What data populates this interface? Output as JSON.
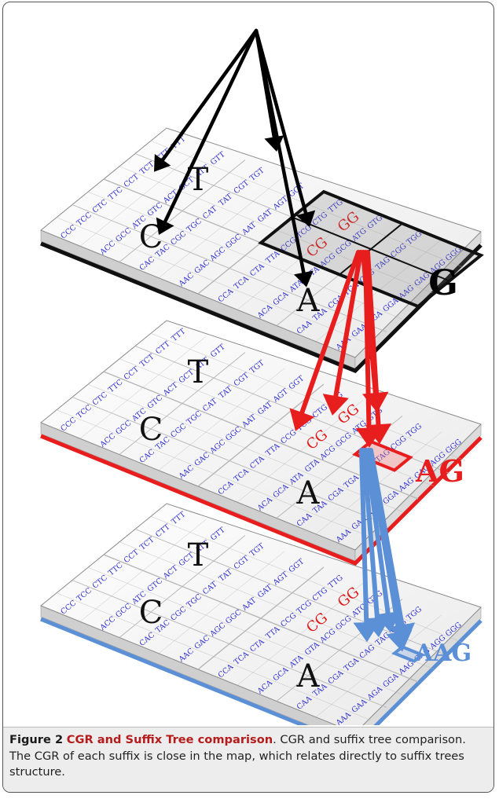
{
  "figure": {
    "plate_labels": [
      "G",
      "AG",
      "AAG"
    ],
    "quadrant_letters": [
      "C",
      "T",
      "A",
      "G"
    ],
    "plate_colors": {
      "top": "#111111",
      "middle": "#e81e1e",
      "bottom": "#5b8fd6"
    },
    "arrow_colors": {
      "top": "#000000",
      "middle": "#e81e1e",
      "bottom": "#5b8fd6"
    },
    "highlight_labels": [
      "CG",
      "GG"
    ],
    "text_colors": {
      "codon": "#2a2acf",
      "highlight": "#e01818"
    },
    "codon_rows": [
      [
        "CCC",
        "TCC",
        "CTC",
        "TTC",
        "CCT",
        "TCT",
        "CTT",
        "TTT"
      ],
      [
        "ACC",
        "GCC",
        "ATC",
        "GTC",
        "ACT",
        "GCT",
        "ATT",
        "GTT"
      ],
      [
        "CAC",
        "TAC",
        "CGC",
        "TGC",
        "CAT",
        "TAT",
        "CGT",
        "TGT"
      ],
      [
        "AAC",
        "GAC",
        "AGC",
        "GGC",
        "AAT",
        "GAT",
        "AGT",
        "GGT"
      ],
      [
        "CCA",
        "TCA",
        "CTA",
        "TTA",
        "CCG",
        "TCG",
        "CTG",
        "TTG"
      ],
      [
        "ACA",
        "GCA",
        "ATA",
        "GTA",
        "ACG",
        "GCG",
        "ATG",
        "GTG"
      ],
      [
        "CAA",
        "TAA",
        "CGA",
        "TGA",
        "CAG",
        "TAG",
        "CGG",
        "TGG"
      ],
      [
        "AAA",
        "GAA",
        "AGA",
        "GGA",
        "AAG",
        "GAG",
        "AGG",
        "GGG"
      ]
    ]
  },
  "caption": {
    "label": "Figure 2",
    "title": "CGR and Suffix Tree comparison",
    "body": ". CGR and suffix tree comparison. The CGR of each suffix is close in the map, which relates directly to suffix trees structure."
  }
}
